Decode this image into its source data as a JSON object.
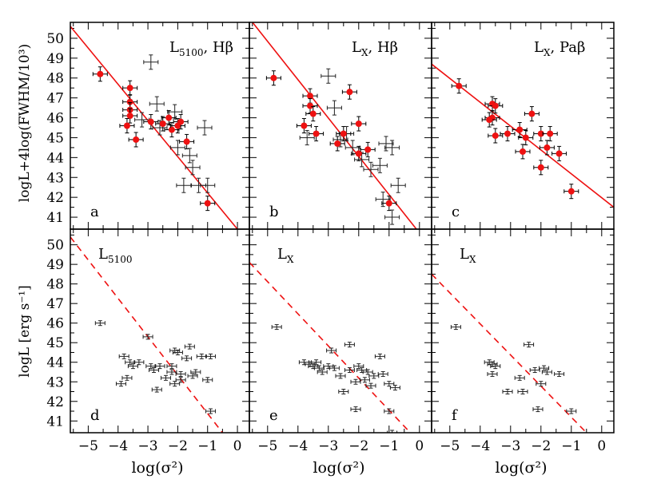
{
  "figure": {
    "ylabel_top": "logL+4log(FWHM/10³)",
    "ylabel_bottom": "logL [erg s⁻¹]",
    "xlabel": "log(σ²)",
    "colors": {
      "fit": "#ee1111",
      "highlight": "#ee1111",
      "points": "#222222",
      "frame": "#000000"
    }
  },
  "chart_data": [
    {
      "type": "scatter",
      "panel": "a",
      "label_main": "L",
      "label_sub": "5100",
      "label_extra": ",  Hβ",
      "xlim": [
        -5.6,
        0.4
      ],
      "ylim": [
        40.4,
        50.8
      ],
      "xticks": [
        -5,
        -4,
        -3,
        -2,
        -1,
        0
      ],
      "yticks": [
        41,
        42,
        43,
        44,
        45,
        46,
        47,
        48,
        49,
        50
      ],
      "fit": {
        "style": "solid",
        "from": [
          -5.6,
          50.6
        ],
        "to": [
          0.0,
          40.4
        ]
      },
      "red": [
        [
          -4.6,
          48.2
        ],
        [
          -3.6,
          47.5
        ],
        [
          -3.6,
          46.8
        ],
        [
          -3.6,
          46.4
        ],
        [
          -3.6,
          46.1
        ],
        [
          -3.7,
          45.6
        ],
        [
          -3.4,
          44.9
        ],
        [
          -2.9,
          45.8
        ],
        [
          -2.5,
          45.7
        ],
        [
          -2.3,
          46.0
        ],
        [
          -2.2,
          45.4
        ],
        [
          -2.0,
          45.6
        ],
        [
          -1.9,
          45.8
        ],
        [
          -1.7,
          44.8
        ],
        [
          -1.0,
          41.7
        ]
      ],
      "black": [
        [
          -3.2,
          45.9
        ],
        [
          -2.9,
          48.8
        ],
        [
          -2.7,
          46.7
        ],
        [
          -2.6,
          45.5
        ],
        [
          -2.1,
          46.3
        ],
        [
          -2.0,
          44.5
        ],
        [
          -1.8,
          42.6
        ],
        [
          -1.6,
          44.1
        ],
        [
          -1.5,
          43.5
        ],
        [
          -1.3,
          42.6
        ],
        [
          -1.1,
          45.5
        ],
        [
          -1.0,
          42.6
        ]
      ]
    },
    {
      "type": "scatter",
      "panel": "b",
      "label_main": "L",
      "label_sub": "X",
      "label_extra": ",  Hβ",
      "xlim": [
        -5.6,
        0.4
      ],
      "ylim": [
        40.4,
        50.8
      ],
      "xticks": [
        -5,
        -4,
        -3,
        -2,
        -1,
        0
      ],
      "yticks": [
        41,
        42,
        43,
        44,
        45,
        46,
        47,
        48,
        49,
        50
      ],
      "fit": {
        "style": "solid",
        "from": [
          -5.6,
          51.0
        ],
        "to": [
          -0.1,
          40.4
        ]
      },
      "red": [
        [
          -4.8,
          48.0
        ],
        [
          -3.6,
          47.1
        ],
        [
          -3.6,
          46.6
        ],
        [
          -3.5,
          46.2
        ],
        [
          -3.4,
          45.2
        ],
        [
          -3.8,
          45.6
        ],
        [
          -2.7,
          44.7
        ],
        [
          -2.5,
          45.2
        ],
        [
          -2.3,
          47.3
        ],
        [
          -2.0,
          45.7
        ],
        [
          -2.0,
          44.2
        ],
        [
          -1.7,
          44.4
        ],
        [
          -1.0,
          41.7
        ]
      ],
      "black": [
        [
          -3.7,
          45.0
        ],
        [
          -3.0,
          48.1
        ],
        [
          -2.8,
          46.5
        ],
        [
          -2.6,
          44.9
        ],
        [
          -2.4,
          45.2
        ],
        [
          -2.2,
          44.5
        ],
        [
          -1.9,
          43.9
        ],
        [
          -1.6,
          43.4
        ],
        [
          -1.3,
          43.6
        ],
        [
          -1.1,
          44.7
        ],
        [
          -0.9,
          44.5
        ],
        [
          -1.2,
          41.9
        ],
        [
          -0.7,
          42.6
        ],
        [
          -0.9,
          41.0
        ]
      ]
    },
    {
      "type": "scatter",
      "panel": "c",
      "label_main": "L",
      "label_sub": "X",
      "label_extra": ",  Paβ",
      "xlim": [
        -5.6,
        0.4
      ],
      "ylim": [
        40.4,
        50.8
      ],
      "xticks": [
        -5,
        -4,
        -3,
        -2,
        -1,
        0
      ],
      "yticks": [
        41,
        42,
        43,
        44,
        45,
        46,
        47,
        48,
        49,
        50
      ],
      "fit": {
        "style": "solid",
        "from": [
          -5.6,
          48.7
        ],
        "to": [
          0.4,
          41.5
        ]
      },
      "red": [
        [
          -4.7,
          47.6
        ],
        [
          -3.6,
          46.7
        ],
        [
          -3.5,
          46.6
        ],
        [
          -3.6,
          46.0
        ],
        [
          -3.7,
          45.9
        ],
        [
          -3.5,
          45.1
        ],
        [
          -3.1,
          45.2
        ],
        [
          -2.7,
          45.4
        ],
        [
          -2.6,
          44.3
        ],
        [
          -2.5,
          45.0
        ],
        [
          -2.3,
          46.2
        ],
        [
          -2.0,
          45.2
        ],
        [
          -2.0,
          43.5
        ],
        [
          -1.8,
          44.5
        ],
        [
          -1.7,
          45.2
        ],
        [
          -1.4,
          44.2
        ],
        [
          -1.0,
          42.3
        ]
      ],
      "black": []
    },
    {
      "type": "scatter",
      "panel": "d",
      "label_main": "L",
      "label_sub": "5100",
      "label_extra": "",
      "xlim": [
        -5.6,
        0.4
      ],
      "ylim": [
        40.4,
        50.8
      ],
      "xticks": [
        -5,
        -4,
        -3,
        -2,
        -1,
        0
      ],
      "yticks": [
        41,
        42,
        43,
        44,
        45,
        46,
        47,
        48,
        49,
        50
      ],
      "fit": {
        "style": "dashed",
        "from": [
          -5.6,
          50.4
        ],
        "to": [
          -0.5,
          40.4
        ]
      },
      "red": [],
      "black": [
        [
          -4.6,
          46.0
        ],
        [
          -3.8,
          44.3
        ],
        [
          -3.6,
          44.0
        ],
        [
          -3.5,
          43.8
        ],
        [
          -3.7,
          43.2
        ],
        [
          -3.9,
          42.9
        ],
        [
          -3.3,
          44.0
        ],
        [
          -3.0,
          45.3
        ],
        [
          -2.9,
          43.8
        ],
        [
          -2.8,
          43.6
        ],
        [
          -2.6,
          43.8
        ],
        [
          -2.7,
          42.6
        ],
        [
          -2.4,
          43.2
        ],
        [
          -2.2,
          43.5
        ],
        [
          -2.2,
          43.8
        ],
        [
          -2.1,
          44.6
        ],
        [
          -2.0,
          44.5
        ],
        [
          -1.9,
          43.4
        ],
        [
          -1.9,
          43.1
        ],
        [
          -1.7,
          44.2
        ],
        [
          -1.6,
          44.8
        ],
        [
          -1.5,
          43.3
        ],
        [
          -1.2,
          44.3
        ],
        [
          -1.4,
          43.5
        ],
        [
          -1.0,
          43.1
        ],
        [
          -0.9,
          44.3
        ],
        [
          -0.9,
          41.5
        ],
        [
          -2.1,
          42.9
        ]
      ]
    },
    {
      "type": "scatter",
      "panel": "e",
      "label_main": "L",
      "label_sub": "X",
      "label_extra": "",
      "xlim": [
        -5.6,
        0.4
      ],
      "ylim": [
        40.4,
        50.8
      ],
      "xticks": [
        -5,
        -4,
        -3,
        -2,
        -1,
        0
      ],
      "yticks": [
        41,
        42,
        43,
        44,
        45,
        46,
        47,
        48,
        49,
        50
      ],
      "fit": {
        "style": "dashed",
        "from": [
          -5.6,
          49.1
        ],
        "to": [
          -0.3,
          40.4
        ]
      },
      "red": [],
      "black": [
        [
          -4.7,
          45.8
        ],
        [
          -3.8,
          44.0
        ],
        [
          -3.6,
          43.9
        ],
        [
          -3.5,
          43.8
        ],
        [
          -3.4,
          44.0
        ],
        [
          -3.3,
          43.7
        ],
        [
          -3.2,
          43.5
        ],
        [
          -3.0,
          43.8
        ],
        [
          -2.9,
          44.6
        ],
        [
          -2.8,
          43.7
        ],
        [
          -2.6,
          43.3
        ],
        [
          -2.5,
          42.5
        ],
        [
          -2.3,
          44.9
        ],
        [
          -2.3,
          43.6
        ],
        [
          -2.1,
          43.0
        ],
        [
          -2.0,
          43.8
        ],
        [
          -1.9,
          43.6
        ],
        [
          -1.8,
          43.1
        ],
        [
          -1.7,
          43.5
        ],
        [
          -1.6,
          42.8
        ],
        [
          -1.5,
          43.3
        ],
        [
          -1.3,
          44.3
        ],
        [
          -1.2,
          43.4
        ],
        [
          -1.0,
          42.9
        ],
        [
          -0.8,
          42.7
        ],
        [
          -2.1,
          41.6
        ],
        [
          -1.0,
          41.5
        ],
        [
          -0.9,
          40.4
        ]
      ]
    },
    {
      "type": "scatter",
      "panel": "f",
      "label_main": "L",
      "label_sub": "X",
      "label_extra": "",
      "xlim": [
        -5.6,
        0.4
      ],
      "ylim": [
        40.4,
        50.8
      ],
      "xticks": [
        -5,
        -4,
        -3,
        -2,
        -1,
        0
      ],
      "yticks": [
        41,
        42,
        43,
        44,
        45,
        46,
        47,
        48,
        49,
        50
      ],
      "fit": {
        "style": "dashed",
        "from": [
          -5.6,
          48.5
        ],
        "to": [
          -0.5,
          40.4
        ]
      },
      "red": [],
      "black": [
        [
          -4.8,
          45.8
        ],
        [
          -3.7,
          44.0
        ],
        [
          -3.6,
          43.9
        ],
        [
          -3.5,
          43.8
        ],
        [
          -3.6,
          43.4
        ],
        [
          -3.1,
          42.5
        ],
        [
          -2.7,
          43.2
        ],
        [
          -2.6,
          42.5
        ],
        [
          -2.4,
          44.9
        ],
        [
          -2.2,
          43.6
        ],
        [
          -2.0,
          42.9
        ],
        [
          -1.8,
          43.5
        ],
        [
          -1.4,
          43.4
        ],
        [
          -1.9,
          43.7
        ],
        [
          -2.1,
          41.6
        ],
        [
          -1.0,
          41.5
        ]
      ]
    }
  ]
}
